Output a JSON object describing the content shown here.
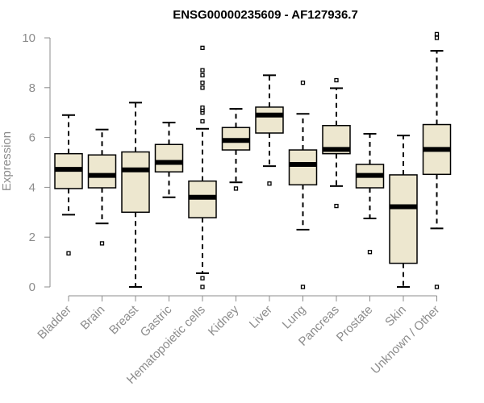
{
  "chart_data": {
    "type": "boxplot",
    "title": "ENSG00000235609 - AF127936.7",
    "ylabel": "Expression",
    "xlabel": "",
    "ylim": [
      0,
      10
    ],
    "yticks": [
      0,
      2,
      4,
      6,
      8,
      10
    ],
    "colors": {
      "box_fill": "#ede7cf",
      "stroke": "#000000",
      "axis": "#8c8c8c"
    },
    "categories": [
      "Bladder",
      "Brain",
      "Breast",
      "Gastric",
      "Hematopoietic cells",
      "Kidney",
      "Liver",
      "Lung",
      "Pancreas",
      "Prostate",
      "Skin",
      "Unknown / Other"
    ],
    "boxes": [
      {
        "label": "Bladder",
        "whisker_low": 2.9,
        "q1": 3.95,
        "median": 4.72,
        "q3": 5.35,
        "whisker_high": 6.9,
        "outliers": [
          1.35
        ]
      },
      {
        "label": "Brain",
        "whisker_low": 2.55,
        "q1": 3.98,
        "median": 4.48,
        "q3": 5.3,
        "whisker_high": 6.32,
        "outliers": [
          1.75
        ]
      },
      {
        "label": "Breast",
        "whisker_low": 0.0,
        "q1": 3.0,
        "median": 4.7,
        "q3": 5.42,
        "whisker_high": 7.4,
        "outliers": []
      },
      {
        "label": "Gastric",
        "whisker_low": 3.6,
        "q1": 4.62,
        "median": 5.0,
        "q3": 5.72,
        "whisker_high": 6.6,
        "outliers": []
      },
      {
        "label": "Hematopoietic cells",
        "whisker_low": 0.55,
        "q1": 2.78,
        "median": 3.6,
        "q3": 4.25,
        "whisker_high": 6.35,
        "outliers": [
          0.0,
          0.35,
          6.65,
          7.0,
          7.1,
          7.2,
          8.0,
          8.2,
          8.5,
          8.7,
          9.6
        ]
      },
      {
        "label": "Kidney",
        "whisker_low": 4.2,
        "q1": 5.5,
        "median": 5.88,
        "q3": 6.4,
        "whisker_high": 7.15,
        "outliers": [
          3.95
        ]
      },
      {
        "label": "Liver",
        "whisker_low": 4.85,
        "q1": 6.18,
        "median": 6.9,
        "q3": 7.22,
        "whisker_high": 8.5,
        "outliers": [
          4.15
        ]
      },
      {
        "label": "Lung",
        "whisker_low": 2.3,
        "q1": 4.1,
        "median": 4.92,
        "q3": 5.5,
        "whisker_high": 6.95,
        "outliers": [
          0.0,
          8.2
        ]
      },
      {
        "label": "Pancreas",
        "whisker_low": 4.05,
        "q1": 5.35,
        "median": 5.52,
        "q3": 6.48,
        "whisker_high": 7.98,
        "outliers": [
          3.25,
          8.3
        ]
      },
      {
        "label": "Prostate",
        "whisker_low": 2.75,
        "q1": 3.98,
        "median": 4.48,
        "q3": 4.92,
        "whisker_high": 6.15,
        "outliers": [
          1.4
        ]
      },
      {
        "label": "Skin",
        "whisker_low": 0.0,
        "q1": 0.95,
        "median": 3.22,
        "q3": 4.5,
        "whisker_high": 6.08,
        "outliers": []
      },
      {
        "label": "Unknown / Other",
        "whisker_low": 2.35,
        "q1": 4.52,
        "median": 5.52,
        "q3": 6.52,
        "whisker_high": 9.48,
        "outliers": [
          0.0,
          10.0,
          10.15
        ]
      }
    ]
  }
}
